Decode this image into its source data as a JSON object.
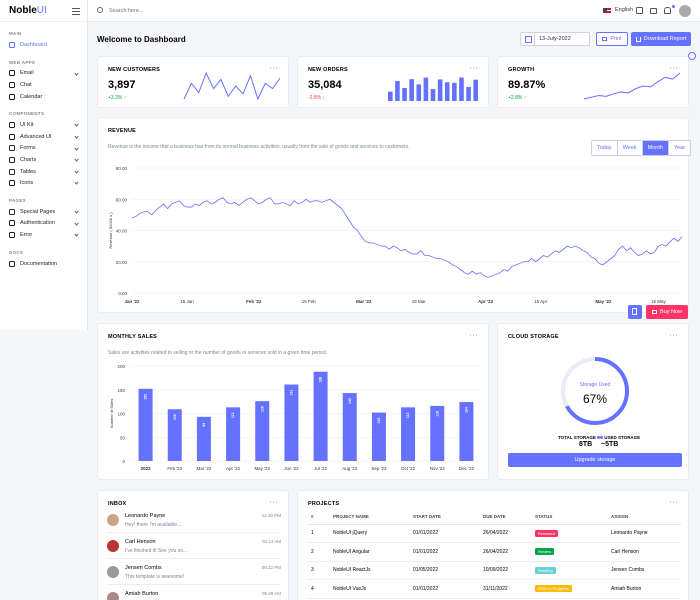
{
  "brand": {
    "name": "Noble",
    "suffix": "UI"
  },
  "sidebar": {
    "categories": {
      "main": "MAIN",
      "web_apps": "WEB APPS",
      "components": "COMPONENTS",
      "pages": "PAGES",
      "docs": "DOCS"
    },
    "items": [
      {
        "label": "Dashboard",
        "icon": "dashboard-icon"
      },
      {
        "label": "Email",
        "icon": "mail-icon"
      },
      {
        "label": "Chat",
        "icon": "chat-icon"
      },
      {
        "label": "Calendar",
        "icon": "calendar-icon"
      },
      {
        "label": "UI Kit",
        "icon": "feather-icon"
      },
      {
        "label": "Advanced UI",
        "icon": "anchor-icon"
      },
      {
        "label": "Forms",
        "icon": "inbox-icon"
      },
      {
        "label": "Charts",
        "icon": "pie-chart-icon"
      },
      {
        "label": "Tables",
        "icon": "layout-icon"
      },
      {
        "label": "Icons",
        "icon": "smile-icon"
      },
      {
        "label": "Special Pages",
        "icon": "book-icon"
      },
      {
        "label": "Authentication",
        "icon": "unlock-icon"
      },
      {
        "label": "Error",
        "icon": "cloud-off-icon"
      },
      {
        "label": "Documentation",
        "icon": "hash-icon"
      }
    ]
  },
  "topbar": {
    "search_placeholder": "Search here...",
    "language": "English"
  },
  "header": {
    "title": "Welcome to Dashboard",
    "date": "13-July-2022",
    "print_label": "Print",
    "download_label": "Download Report"
  },
  "stats": [
    {
      "title": "NEW CUSTOMERS",
      "value": "3,897",
      "change": "+3.3%",
      "trend": "up",
      "spark": [
        40,
        52,
        45,
        60,
        48,
        55,
        42,
        50,
        44,
        58,
        40,
        52,
        48,
        56
      ]
    },
    {
      "title": "NEW ORDERS",
      "value": "35,084",
      "change": "-2.8%",
      "trend": "down",
      "bars": [
        36,
        77,
        50,
        84,
        64,
        90,
        46,
        83,
        72,
        70,
        90,
        54,
        82
      ]
    },
    {
      "title": "GROWTH",
      "value": "89.87%",
      "change": "+2.8%",
      "trend": "up",
      "spark": [
        10,
        12,
        14,
        13,
        16,
        18,
        17,
        22,
        25,
        24,
        30,
        35,
        33,
        40
      ]
    }
  ],
  "revenue": {
    "title": "REVENUE",
    "description": "Revenue is the income that a business has from its normal business activities, usually from the sale of goods and services to customers.",
    "ranges": [
      "Today",
      "Week",
      "Month",
      "Year"
    ],
    "active_range": "Month"
  },
  "chart_data": [
    {
      "type": "line",
      "ylabel": "Revenue ( $1000 x )",
      "ylim": [
        0,
        80
      ],
      "yticks": [
        "0.00",
        "20.00",
        "40.00",
        "60.00",
        "80.00"
      ],
      "xticks": [
        "Jan '22",
        "15 Jan",
        "Feb '22",
        "15 Feb",
        "Mar '22",
        "15 Mar",
        "Apr '22",
        "15 Apr",
        "May '22",
        "15 May"
      ],
      "xticks_bold": [
        true,
        false,
        true,
        false,
        true,
        false,
        true,
        false,
        true,
        false
      ],
      "x_range": [
        0,
        140
      ],
      "xtick_positions": [
        0,
        14,
        31,
        45,
        59,
        73,
        90,
        104,
        120,
        134
      ],
      "values": [
        48,
        49,
        51,
        52,
        52,
        50,
        53,
        55,
        57,
        54,
        57,
        58,
        59,
        56,
        55,
        55,
        57,
        56,
        58,
        59,
        57,
        58,
        60,
        61,
        58,
        57,
        58,
        56,
        58,
        60,
        61,
        59,
        57,
        58,
        60,
        61,
        57,
        57,
        58,
        57,
        56,
        59,
        57,
        58,
        60,
        58,
        59,
        59,
        58,
        59,
        60,
        58,
        56,
        54,
        50,
        46,
        42,
        40,
        36,
        33,
        32,
        32,
        31,
        30,
        30,
        28,
        30,
        29,
        27,
        28,
        26,
        25,
        25,
        27,
        24,
        24,
        23,
        22,
        22,
        21,
        20,
        18,
        17,
        15,
        13,
        12,
        14,
        12,
        13,
        11,
        10,
        11,
        12,
        13,
        15,
        14,
        17,
        18,
        19,
        20,
        20,
        22,
        20,
        22,
        24,
        23,
        25,
        27,
        26,
        28,
        30,
        29,
        30,
        29,
        27,
        26,
        23,
        22,
        19,
        18,
        20,
        22,
        24,
        28,
        30,
        27,
        29,
        26,
        24,
        25,
        27,
        25,
        26,
        30,
        31,
        30,
        33,
        35,
        33,
        36
      ]
    },
    {
      "type": "bar",
      "title": "MONTHLY SALES",
      "description": "Sales are activities related to selling or the number of goods or services sold in a given time period.",
      "ylabel": "Number of Sales",
      "ylim": [
        0,
        200
      ],
      "yticks": [
        "0",
        "50",
        "100",
        "150",
        "200"
      ],
      "categories": [
        "2022",
        "Feb '22",
        "Mar '22",
        "Apr '22",
        "May '22",
        "Jun '22",
        "Jul '22",
        "Aug '22",
        "Sep '22",
        "Oct '22",
        "Nov '22",
        "Dec '22"
      ],
      "categories_bold": [
        true,
        false,
        false,
        false,
        false,
        false,
        false,
        false,
        false,
        false,
        false,
        false
      ],
      "values": [
        152,
        109,
        93,
        113,
        126,
        161,
        188,
        143,
        102,
        113,
        116,
        124
      ]
    },
    {
      "type": "pie",
      "title": "CLOUD STORAGE",
      "center_label": "Storage Used",
      "value_label": "67%",
      "values": [
        67,
        33
      ],
      "colors": [
        "#6571ff",
        "#e9ebf5"
      ]
    }
  ],
  "storage": {
    "total_label": "TOTAL STORAGE",
    "total_value": "8TB",
    "used_label": "USED STORAGE",
    "used_value": "~5TB",
    "upgrade_label": "Upgrade storage"
  },
  "inbox": {
    "title": "INBOX",
    "items": [
      {
        "name": "Leonardo Payne",
        "message": "Hey! there I'm available....",
        "time": "12.30 PM"
      },
      {
        "name": "Carl Henson",
        "message": "I've finished it! See you so...",
        "time": "02.14 AM"
      },
      {
        "name": "Jensen Combs",
        "message": "This template is awesome!",
        "time": "08.22 PM"
      },
      {
        "name": "Amiah Burton",
        "message": "",
        "time": "05.49 AM"
      }
    ]
  },
  "projects": {
    "title": "PROJECTS",
    "columns": [
      "#",
      "PROJECT NAME",
      "START DATE",
      "DUE DATE",
      "STATUS",
      "ASSIGN"
    ],
    "rows": [
      {
        "num": "1",
        "name": "NobleUI jQuery",
        "start": "01/01/2022",
        "due": "26/04/2022",
        "status": "Released",
        "status_color": "#ff3366",
        "assign": "Leonardo Payne"
      },
      {
        "num": "2",
        "name": "NobleUI Angular",
        "start": "01/01/2022",
        "due": "26/04/2022",
        "status": "Review",
        "status_color": "#05a34a",
        "assign": "Carl Henson"
      },
      {
        "num": "3",
        "name": "NobleUI ReactJs",
        "start": "01/05/2022",
        "due": "10/09/2022",
        "status": "Pending",
        "status_color": "#66d1d1",
        "assign": "Jensen Combs"
      },
      {
        "num": "4",
        "name": "NobleUI VueJs",
        "start": "01/01/2022",
        "due": "31/11/2022",
        "status": "Work in Progress",
        "status_color": "#fbbc06",
        "assign": "Amiah Burton"
      }
    ]
  },
  "floating": {
    "buy_label": "Buy Now"
  },
  "colors": {
    "accent": "#6571ff",
    "danger": "#ff3366",
    "success": "#05a34a"
  }
}
